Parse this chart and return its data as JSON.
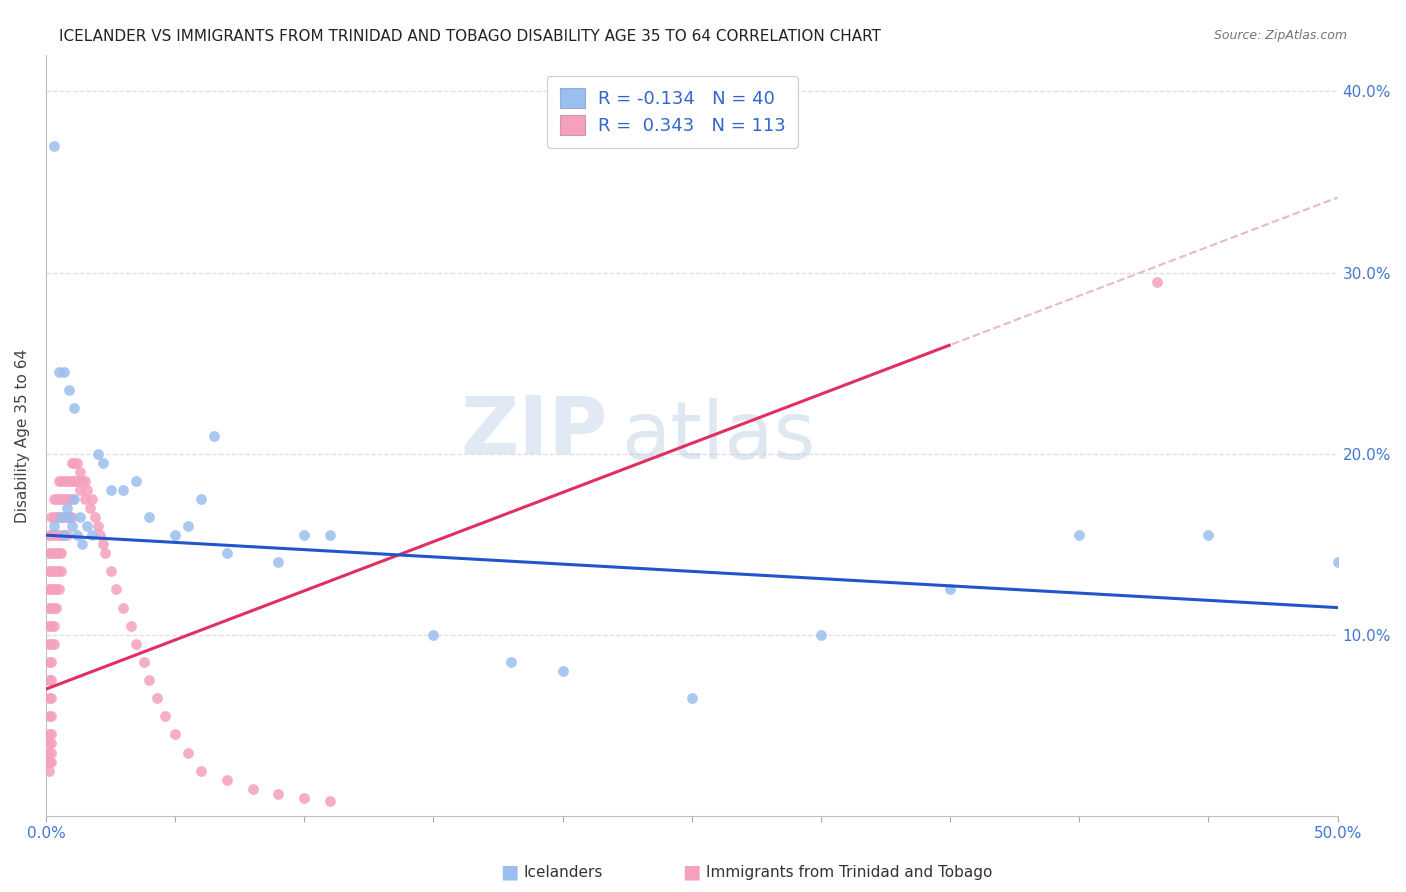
{
  "title": "ICELANDER VS IMMIGRANTS FROM TRINIDAD AND TOBAGO DISABILITY AGE 35 TO 64 CORRELATION CHART",
  "source": "Source: ZipAtlas.com",
  "ylabel": "Disability Age 35 to 64",
  "legend_icelander": "Icelanders",
  "legend_immigrant": "Immigrants from Trinidad and Tobago",
  "R_icelander": -0.134,
  "N_icelander": 40,
  "R_immigrant": 0.343,
  "N_immigrant": 113,
  "color_icelander": "#99beef",
  "color_immigrant": "#f5a0bc",
  "color_icelander_line": "#2255cc",
  "color_immigrant_line": "#e03060",
  "color_dashed": "#e8b8cc",
  "watermark_zip": "ZIP",
  "watermark_atlas": "atlas",
  "xlim": [
    0.0,
    0.5
  ],
  "ylim": [
    0.0,
    0.42
  ],
  "y_ticks": [
    0.1,
    0.2,
    0.3,
    0.4
  ],
  "x_tick_positions": [
    0.0,
    0.05,
    0.1,
    0.15,
    0.2,
    0.25,
    0.3,
    0.35,
    0.4,
    0.45,
    0.5
  ],
  "ice_x": [
    0.003,
    0.006,
    0.007,
    0.008,
    0.009,
    0.01,
    0.011,
    0.012,
    0.013,
    0.014,
    0.016,
    0.018,
    0.02,
    0.022,
    0.025,
    0.03,
    0.035,
    0.04,
    0.05,
    0.055,
    0.06,
    0.065,
    0.07,
    0.09,
    0.1,
    0.11,
    0.15,
    0.18,
    0.2,
    0.25,
    0.3,
    0.35,
    0.4,
    0.45,
    0.5,
    0.003,
    0.005,
    0.007,
    0.009,
    0.011
  ],
  "ice_y": [
    0.16,
    0.165,
    0.155,
    0.17,
    0.165,
    0.16,
    0.175,
    0.155,
    0.165,
    0.15,
    0.16,
    0.155,
    0.2,
    0.195,
    0.18,
    0.18,
    0.185,
    0.165,
    0.155,
    0.16,
    0.175,
    0.21,
    0.145,
    0.14,
    0.155,
    0.155,
    0.1,
    0.085,
    0.08,
    0.065,
    0.1,
    0.125,
    0.155,
    0.155,
    0.14,
    0.37,
    0.245,
    0.245,
    0.235,
    0.225
  ],
  "imm_x": [
    0.001,
    0.001,
    0.001,
    0.001,
    0.001,
    0.001,
    0.001,
    0.001,
    0.001,
    0.001,
    0.001,
    0.001,
    0.001,
    0.001,
    0.001,
    0.001,
    0.002,
    0.002,
    0.002,
    0.002,
    0.002,
    0.002,
    0.002,
    0.002,
    0.002,
    0.002,
    0.002,
    0.002,
    0.002,
    0.002,
    0.002,
    0.002,
    0.003,
    0.003,
    0.003,
    0.003,
    0.003,
    0.003,
    0.003,
    0.003,
    0.003,
    0.004,
    0.004,
    0.004,
    0.004,
    0.004,
    0.004,
    0.004,
    0.005,
    0.005,
    0.005,
    0.005,
    0.005,
    0.005,
    0.005,
    0.006,
    0.006,
    0.006,
    0.006,
    0.006,
    0.006,
    0.007,
    0.007,
    0.007,
    0.007,
    0.008,
    0.008,
    0.008,
    0.008,
    0.009,
    0.009,
    0.009,
    0.01,
    0.01,
    0.01,
    0.01,
    0.011,
    0.011,
    0.012,
    0.012,
    0.013,
    0.013,
    0.014,
    0.015,
    0.015,
    0.016,
    0.017,
    0.018,
    0.019,
    0.02,
    0.021,
    0.022,
    0.023,
    0.025,
    0.027,
    0.03,
    0.033,
    0.035,
    0.038,
    0.04,
    0.043,
    0.046,
    0.05,
    0.055,
    0.06,
    0.07,
    0.08,
    0.09,
    0.1,
    0.11,
    0.43
  ],
  "imm_y": [
    0.155,
    0.145,
    0.135,
    0.125,
    0.115,
    0.105,
    0.095,
    0.085,
    0.075,
    0.065,
    0.055,
    0.045,
    0.04,
    0.035,
    0.03,
    0.025,
    0.165,
    0.155,
    0.145,
    0.135,
    0.125,
    0.115,
    0.105,
    0.095,
    0.085,
    0.075,
    0.065,
    0.055,
    0.045,
    0.04,
    0.035,
    0.03,
    0.175,
    0.165,
    0.155,
    0.145,
    0.135,
    0.125,
    0.115,
    0.105,
    0.095,
    0.175,
    0.165,
    0.155,
    0.145,
    0.135,
    0.125,
    0.115,
    0.185,
    0.175,
    0.165,
    0.155,
    0.145,
    0.135,
    0.125,
    0.185,
    0.175,
    0.165,
    0.155,
    0.145,
    0.135,
    0.185,
    0.175,
    0.165,
    0.155,
    0.185,
    0.175,
    0.165,
    0.155,
    0.185,
    0.175,
    0.165,
    0.195,
    0.185,
    0.175,
    0.165,
    0.195,
    0.185,
    0.195,
    0.185,
    0.19,
    0.18,
    0.185,
    0.185,
    0.175,
    0.18,
    0.17,
    0.175,
    0.165,
    0.16,
    0.155,
    0.15,
    0.145,
    0.135,
    0.125,
    0.115,
    0.105,
    0.095,
    0.085,
    0.075,
    0.065,
    0.055,
    0.045,
    0.035,
    0.025,
    0.02,
    0.015,
    0.012,
    0.01,
    0.008,
    0.295
  ]
}
